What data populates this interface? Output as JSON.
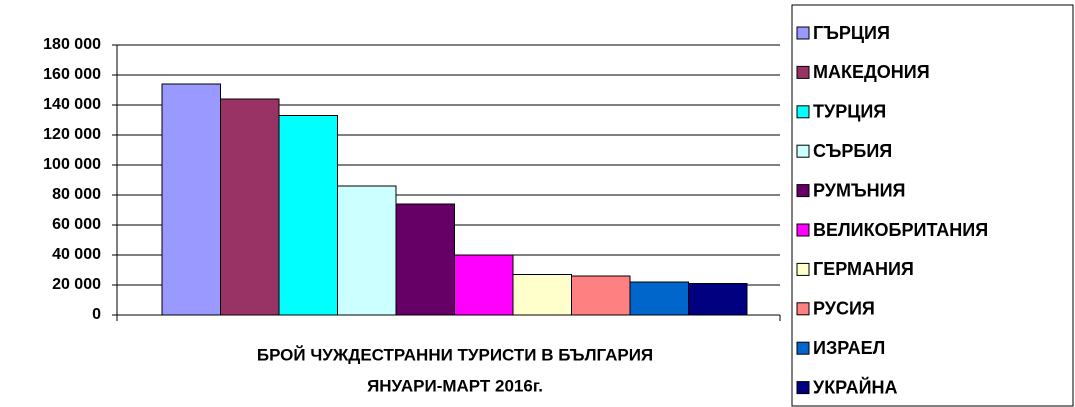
{
  "chart_data": {
    "type": "bar",
    "xlabel": [
      "БРОЙ ЧУЖДЕСТРАННИ ТУРИСТИ В БЪЛГАРИЯ",
      "ЯНУАРИ-МАРТ 2016г."
    ],
    "series": [
      {
        "name": "ГЪРЦИЯ",
        "color": "#9999ff",
        "values": [
          154000
        ]
      },
      {
        "name": "МАКЕДОНИЯ",
        "color": "#993366",
        "values": [
          144000
        ]
      },
      {
        "name": "ТУРЦИЯ",
        "color": "#00ffff",
        "values": [
          133000
        ]
      },
      {
        "name": "СЪРБИЯ",
        "color": "#ccffff",
        "values": [
          86000
        ]
      },
      {
        "name": "РУМЪНИЯ",
        "color": "#660066",
        "values": [
          74000
        ]
      },
      {
        "name": "ВЕЛИКОБРИТАНИЯ",
        "color": "#ff00ff",
        "values": [
          40000
        ]
      },
      {
        "name": "ГЕРМАНИЯ",
        "color": "#ffffcc",
        "values": [
          27000
        ]
      },
      {
        "name": "РУСИЯ",
        "color": "#ff8080",
        "values": [
          26000
        ]
      },
      {
        "name": "ИЗРАЕЛ",
        "color": "#0066cc",
        "values": [
          22000
        ]
      },
      {
        "name": "УКРАЙНА",
        "color": "#000080",
        "values": [
          21000
        ]
      }
    ],
    "ylim": [
      0,
      180000
    ],
    "yticks": [
      0,
      {
        "value": 20000,
        "label": "20 000"
      },
      {
        "value": 40000,
        "label": "40 000"
      },
      {
        "value": 60000,
        "label": "60 000"
      },
      {
        "value": 80000,
        "label": "80 000"
      },
      {
        "value": 100000,
        "label": "100 000"
      },
      {
        "value": 120000,
        "label": "120 000"
      },
      {
        "value": 140000,
        "label": "140 000"
      },
      {
        "value": 160000,
        "label": "160 000"
      },
      {
        "value": 180000,
        "label": "180 000"
      }
    ],
    "grid": true,
    "legend": "right"
  }
}
